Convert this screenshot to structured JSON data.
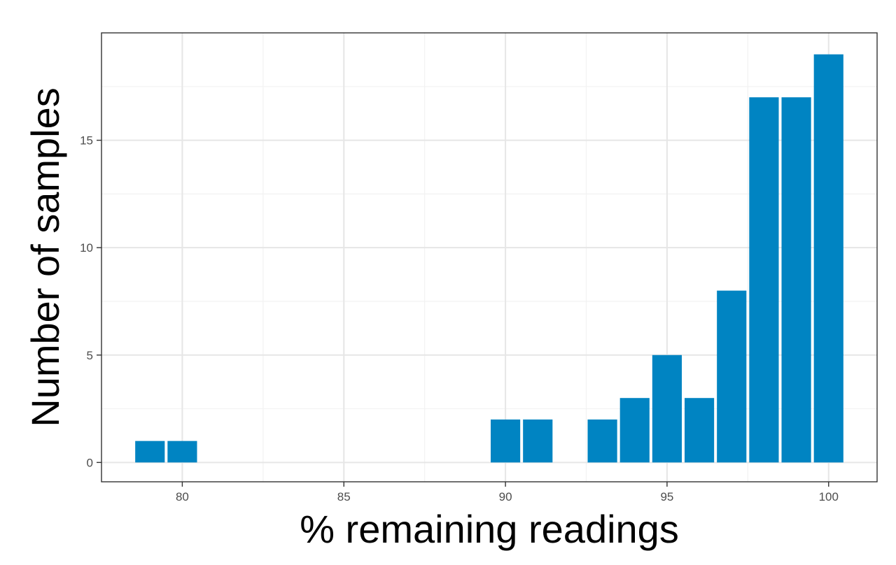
{
  "chart_data": {
    "type": "bar",
    "xlabel": "% remaining readings",
    "ylabel": "Number of samples",
    "xlim": [
      77.5,
      101.5
    ],
    "ylim": [
      -0.9,
      20
    ],
    "x_ticks": [
      80,
      85,
      90,
      95,
      100
    ],
    "y_ticks": [
      0,
      5,
      10,
      15
    ],
    "grid": true,
    "bin_width": 1,
    "bar_color": "#0084c2",
    "bins": [
      {
        "x": 79,
        "value": 1
      },
      {
        "x": 80,
        "value": 1
      },
      {
        "x": 81,
        "value": 0
      },
      {
        "x": 82,
        "value": 0
      },
      {
        "x": 83,
        "value": 0
      },
      {
        "x": 84,
        "value": 0
      },
      {
        "x": 85,
        "value": 0
      },
      {
        "x": 86,
        "value": 0
      },
      {
        "x": 87,
        "value": 0
      },
      {
        "x": 88,
        "value": 0
      },
      {
        "x": 89,
        "value": 0
      },
      {
        "x": 90,
        "value": 2
      },
      {
        "x": 91,
        "value": 2
      },
      {
        "x": 92,
        "value": 0
      },
      {
        "x": 93,
        "value": 2
      },
      {
        "x": 94,
        "value": 3
      },
      {
        "x": 95,
        "value": 5
      },
      {
        "x": 96,
        "value": 3
      },
      {
        "x": 97,
        "value": 8
      },
      {
        "x": 98,
        "value": 17
      },
      {
        "x": 99,
        "value": 17
      },
      {
        "x": 100,
        "value": 19
      }
    ]
  }
}
